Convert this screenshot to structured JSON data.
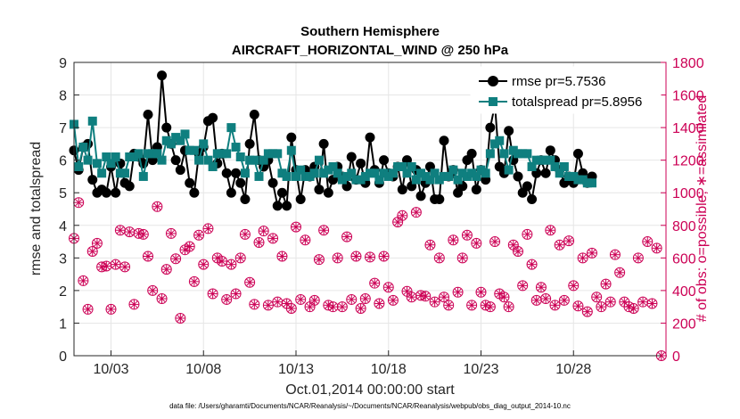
{
  "chart_data": {
    "type": "line",
    "title": "Southern Hemisphere",
    "subtitle": "AIRCRAFT_HORIZONTAL_WIND @ 250 hPa",
    "xlabel": "Oct.01,2014 00:00:00 start",
    "ylabel_left": "rmse and totalspread",
    "ylabel_right": "# of obs: o=possible; ∗=assimilated",
    "footnote": "data file: /Users/gharamti/Documents/NCAR/Reanalysis/~/Documents/NCAR/Reanalysis/webpub/obs_diag_output_2014-10.nc",
    "x_range": [
      1,
      33
    ],
    "ylim_left": [
      0,
      9
    ],
    "ylim_right": [
      0,
      1800
    ],
    "x_ticks": [
      {
        "value": 3,
        "label": "10/03"
      },
      {
        "value": 8,
        "label": "10/08"
      },
      {
        "value": 13,
        "label": "10/13"
      },
      {
        "value": 18,
        "label": "10/18"
      },
      {
        "value": 23,
        "label": "10/23"
      },
      {
        "value": 28,
        "label": "10/28"
      }
    ],
    "y_ticks_left": [
      "0",
      "1",
      "2",
      "3",
      "4",
      "5",
      "6",
      "7",
      "8",
      "9"
    ],
    "y_ticks_right": [
      "0",
      "200",
      "400",
      "600",
      "800",
      "1000",
      "1200",
      "1400",
      "1600",
      "1800"
    ],
    "grid": true,
    "legend_position": "top-right",
    "x_step_days": 0.25,
    "series": [
      {
        "name": "rmse pr=5.7536",
        "color": "#000000",
        "marker": "circle",
        "axis": "left",
        "values": [
          6.3,
          5.7,
          6.4,
          6.5,
          5.4,
          5.0,
          5.1,
          5.0,
          5.8,
          5.0,
          5.9,
          5.3,
          5.2,
          6.2,
          6.1,
          5.9,
          7.4,
          6.0,
          6.4,
          8.6,
          7.0,
          6.5,
          6.0,
          5.7,
          6.3,
          5.3,
          5.0,
          6.2,
          6.4,
          7.2,
          7.3,
          5.9,
          6.2,
          5.6,
          5.0,
          5.6,
          5.3,
          4.8,
          6.5,
          7.4,
          6.0,
          5.8,
          6.0,
          5.3,
          4.6,
          5.0,
          4.6,
          6.7,
          5.7,
          4.8,
          5.7,
          5.5,
          5.8,
          5.1,
          6.5,
          5.0,
          5.4,
          5.8,
          5.5,
          5.2,
          6.1,
          5.4,
          5.9,
          5.3,
          6.7,
          5.7,
          5.3,
          6.0,
          5.6,
          5.5,
          5.8,
          5.1,
          6.0,
          5.2,
          5.7,
          4.9,
          5.3,
          5.8,
          4.8,
          4.8,
          6.6,
          5.5,
          5.7,
          5.0,
          5.2,
          6.0,
          6.2,
          5.1,
          5.7,
          5.4,
          7.0,
          7.7,
          5.8,
          5.6,
          6.9,
          6.0,
          5.5,
          5.0,
          5.2,
          4.8,
          5.6,
          6.0,
          5.6,
          6.3,
          6.0,
          5.7,
          5.3,
          5.5,
          5.3,
          6.2,
          5.6,
          5.3,
          5.5
        ]
      },
      {
        "name": "totalspread pr=5.8956",
        "color": "#0f7f7f",
        "marker": "square",
        "axis": "left",
        "values": [
          7.1,
          5.8,
          6.4,
          6.0,
          7.2,
          5.9,
          5.6,
          6.1,
          5.9,
          6.1,
          5.6,
          5.6,
          6.1,
          6.1,
          6.2,
          5.5,
          6.2,
          6.2,
          6.2,
          6.0,
          6.6,
          6.5,
          6.7,
          6.6,
          6.8,
          6.3,
          6.3,
          6.0,
          6.5,
          6.0,
          5.8,
          6.2,
          6.2,
          6.2,
          7.0,
          6.4,
          6.1,
          5.6,
          6.0,
          6.0,
          5.5,
          6.0,
          6.2,
          6.2,
          6.2,
          5.6,
          5.5,
          6.3,
          5.5,
          5.7,
          5.5,
          5.5,
          5.6,
          6.0,
          5.6,
          5.7,
          5.8,
          5.6,
          5.4,
          5.5,
          5.6,
          5.4,
          5.4,
          5.5,
          5.6,
          5.6,
          5.4,
          5.6,
          5.5,
          5.6,
          5.8,
          5.8,
          5.6,
          5.8,
          5.4,
          5.6,
          5.5,
          5.4,
          5.6,
          5.4,
          5.5,
          5.5,
          5.7,
          5.4,
          5.6,
          5.5,
          5.6,
          5.5,
          5.7,
          5.6,
          6.2,
          6.5,
          6.6,
          6.2,
          5.7,
          6.3,
          6.2,
          6.2,
          6.2,
          5.8,
          6.0,
          6.0,
          6.0,
          6.0,
          5.8,
          5.6,
          5.8,
          5.5,
          5.5,
          5.4,
          5.4,
          5.3,
          5.3
        ]
      },
      {
        "name": "# of obs possible",
        "color": "#cc0055",
        "marker": "circle-open",
        "axis": "right",
        "values": [
          720,
          940,
          460,
          285,
          640,
          690,
          545,
          550,
          285,
          560,
          770,
          545,
          760,
          315,
          750,
          745,
          610,
          400,
          915,
          350,
          530,
          750,
          595,
          230,
          650,
          670,
          455,
          740,
          560,
          780,
          380,
          600,
          580,
          345,
          560,
          380,
          600,
          745,
          450,
          315,
          695,
          765,
          310,
          720,
          330,
          610,
          320,
          290,
          790,
          345,
          710,
          300,
          340,
          590,
          770,
          310,
          300,
          600,
          300,
          730,
          345,
          610,
          290,
          350,
          605,
          445,
          320,
          610,
          420,
          340,
          820,
          860,
          395,
          360,
          880,
          370,
          365,
          680,
          330,
          600,
          360,
          310,
          710,
          390,
          600,
          740,
          310,
          690,
          390,
          310,
          300,
          700,
          380,
          360,
          300,
          680,
          640,
          430,
          745,
          560,
          340,
          420,
          350,
          770,
          310,
          680,
          340,
          705,
          430,
          305,
          600,
          270,
          630,
          360,
          300,
          440,
          330,
          620,
          510,
          330,
          300,
          290,
          600,
          330,
          700,
          320,
          660,
          0
        ]
      },
      {
        "name": "# of obs assimilated",
        "color": "#cc0055",
        "marker": "asterisk",
        "axis": "right",
        "values": [
          720,
          940,
          460,
          285,
          640,
          690,
          545,
          550,
          285,
          560,
          770,
          545,
          760,
          315,
          750,
          745,
          610,
          400,
          915,
          350,
          530,
          750,
          595,
          230,
          650,
          670,
          455,
          740,
          560,
          780,
          380,
          600,
          580,
          345,
          560,
          380,
          600,
          745,
          450,
          315,
          695,
          765,
          310,
          720,
          330,
          610,
          320,
          290,
          790,
          345,
          710,
          300,
          340,
          590,
          770,
          310,
          300,
          600,
          300,
          730,
          345,
          610,
          290,
          350,
          605,
          445,
          320,
          610,
          420,
          340,
          820,
          860,
          395,
          360,
          880,
          370,
          365,
          680,
          330,
          600,
          360,
          310,
          710,
          390,
          600,
          740,
          310,
          690,
          390,
          310,
          300,
          700,
          380,
          360,
          300,
          680,
          640,
          430,
          745,
          560,
          340,
          420,
          350,
          770,
          310,
          680,
          340,
          705,
          430,
          305,
          600,
          270,
          630,
          360,
          300,
          440,
          330,
          620,
          510,
          330,
          300,
          290,
          600,
          330,
          700,
          320,
          660,
          0
        ]
      }
    ]
  }
}
